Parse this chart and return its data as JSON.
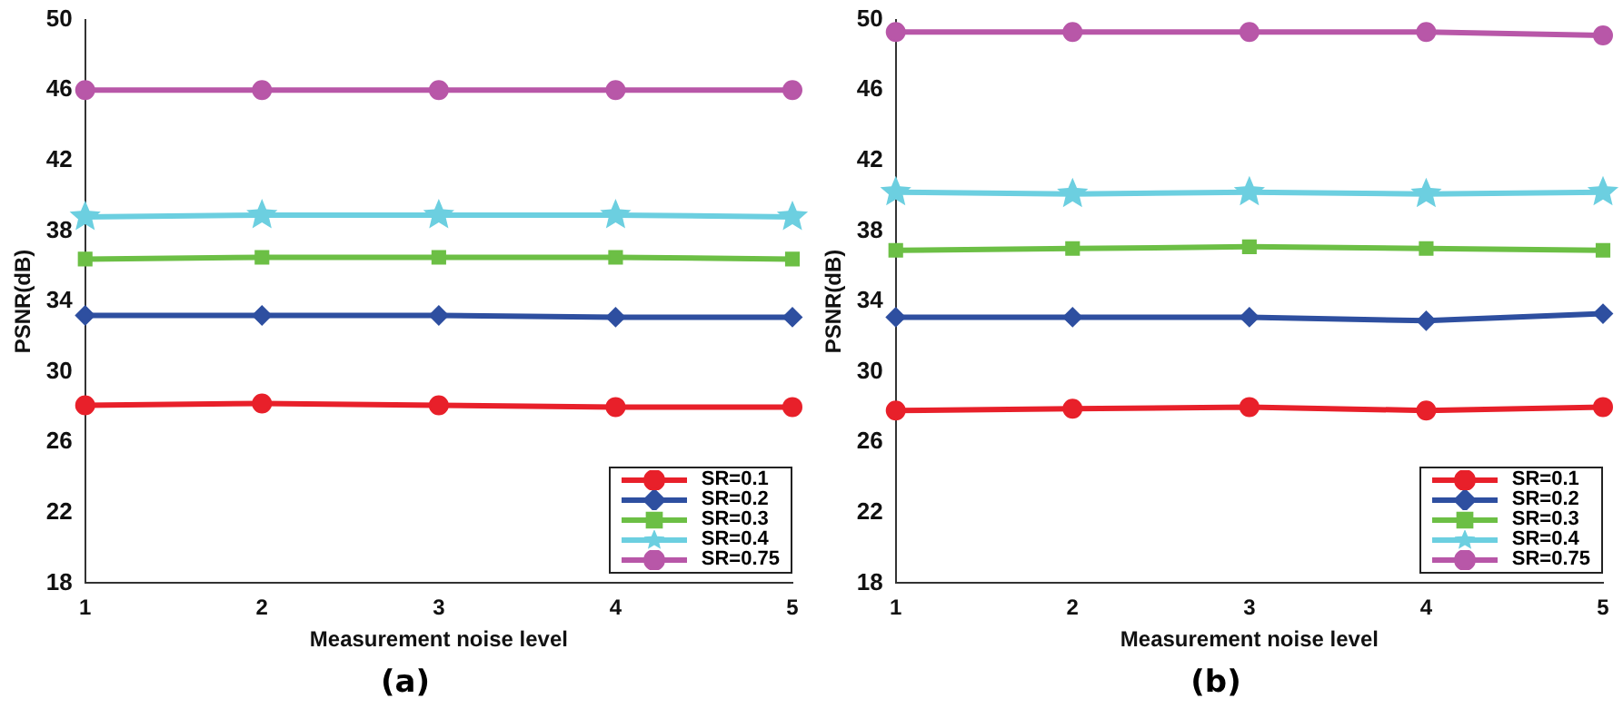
{
  "chart_data": [
    {
      "type": "line",
      "xlabel": "Measurement noise level",
      "ylabel": "PSNR(dB)",
      "annotations": [
        "(a)"
      ],
      "x": [
        1,
        2,
        3,
        4,
        5
      ],
      "xlim": [
        1,
        5
      ],
      "xticks": [
        1,
        2,
        3,
        4,
        5
      ],
      "ylim": [
        18,
        50
      ],
      "yticks": [
        18,
        22,
        26,
        30,
        34,
        38,
        42,
        46,
        50
      ],
      "grid": false,
      "legend": "bottom right",
      "series": [
        {
          "name": "SR=0.1",
          "color": "#e8202a",
          "marker": "circle",
          "values": [
            28.1,
            28.2,
            28.1,
            28.0,
            28.0
          ]
        },
        {
          "name": "SR=0.2",
          "color": "#2e4fa0",
          "marker": "diamond",
          "values": [
            33.2,
            33.2,
            33.2,
            33.1,
            33.1
          ]
        },
        {
          "name": "SR=0.3",
          "color": "#6cbf45",
          "marker": "square",
          "values": [
            36.4,
            36.5,
            36.5,
            36.5,
            36.4
          ]
        },
        {
          "name": "SR=0.4",
          "color": "#6ccfe0",
          "marker": "star",
          "values": [
            38.8,
            38.9,
            38.9,
            38.9,
            38.8
          ]
        },
        {
          "name": "SR=0.75",
          "color": "#b857a8",
          "marker": "circle",
          "values": [
            46.0,
            46.0,
            46.0,
            46.0,
            46.0
          ]
        }
      ]
    },
    {
      "type": "line",
      "xlabel": "Measurement noise level",
      "ylabel": "PSNR(dB)",
      "annotations": [
        "(b)"
      ],
      "x": [
        1,
        2,
        3,
        4,
        5
      ],
      "xlim": [
        1,
        5
      ],
      "xticks": [
        1,
        2,
        3,
        4,
        5
      ],
      "ylim": [
        18,
        50
      ],
      "yticks": [
        18,
        22,
        26,
        30,
        34,
        38,
        42,
        46,
        50
      ],
      "grid": false,
      "legend": "bottom right",
      "series": [
        {
          "name": "SR=0.1",
          "color": "#e8202a",
          "marker": "circle",
          "values": [
            27.8,
            27.9,
            28.0,
            27.8,
            28.0
          ]
        },
        {
          "name": "SR=0.2",
          "color": "#2e4fa0",
          "marker": "diamond",
          "values": [
            33.1,
            33.1,
            33.1,
            32.9,
            33.3
          ]
        },
        {
          "name": "SR=0.3",
          "color": "#6cbf45",
          "marker": "square",
          "values": [
            36.9,
            37.0,
            37.1,
            37.0,
            36.9
          ]
        },
        {
          "name": "SR=0.4",
          "color": "#6ccfe0",
          "marker": "star",
          "values": [
            40.2,
            40.1,
            40.2,
            40.1,
            40.2
          ]
        },
        {
          "name": "SR=0.75",
          "color": "#b857a8",
          "marker": "circle",
          "values": [
            49.3,
            49.3,
            49.3,
            49.3,
            49.1
          ]
        }
      ]
    }
  ]
}
